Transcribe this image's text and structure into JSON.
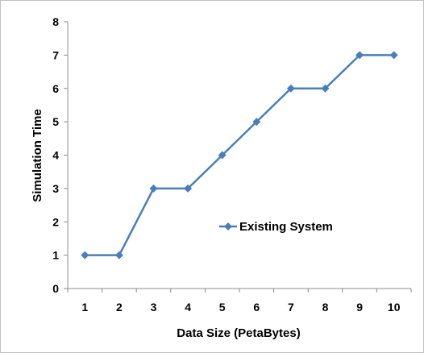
{
  "chart_data": {
    "type": "line",
    "xlabel": "Data Size (PetaBytes)",
    "ylabel": "Simulation Time",
    "x": [
      1,
      2,
      3,
      4,
      5,
      6,
      7,
      8,
      9,
      10
    ],
    "ylim": [
      0,
      8
    ],
    "yticks": [
      0,
      1,
      2,
      3,
      4,
      5,
      6,
      7,
      8
    ],
    "grid": false,
    "legend_position": "middle-right",
    "series": [
      {
        "name": "Existing System",
        "values": [
          1,
          1,
          3,
          3,
          4,
          5,
          6,
          6,
          7,
          7
        ],
        "color": "#4a7ebb",
        "marker": "diamond"
      }
    ]
  }
}
